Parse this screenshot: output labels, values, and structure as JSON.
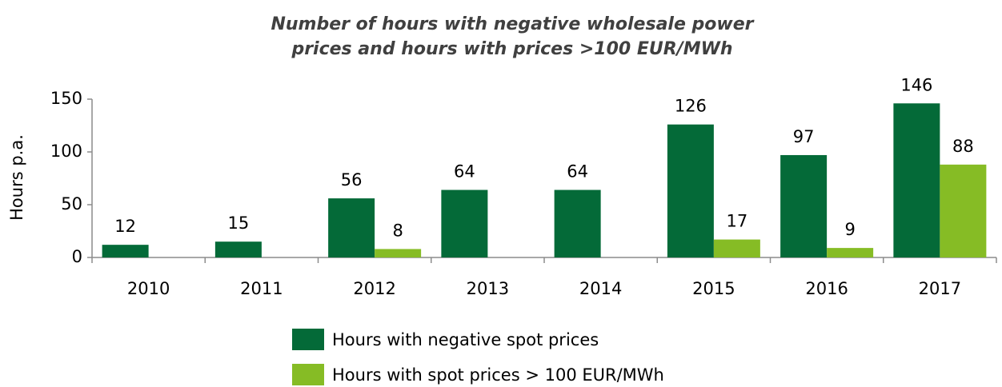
{
  "chart_data": {
    "type": "bar",
    "title": [
      "Number of hours with negative wholesale power",
      "prices and hours with prices >100 EUR/MWh"
    ],
    "y_label": "Hours p.a.",
    "categories": [
      "2010",
      "2011",
      "2012",
      "2013",
      "2014",
      "2015",
      "2016",
      "2017"
    ],
    "series": [
      {
        "name": "Hours with negative spot prices",
        "color": "#046a38",
        "values": [
          12,
          15,
          56,
          64,
          64,
          126,
          97,
          146
        ]
      },
      {
        "name": "Hours with spot prices > 100 EUR/MWh",
        "color": "#86bc25",
        "values": [
          null,
          null,
          8,
          null,
          null,
          17,
          9,
          88
        ]
      }
    ],
    "ylim": [
      0,
      150
    ],
    "yticks": [
      0,
      50,
      100,
      150
    ]
  }
}
